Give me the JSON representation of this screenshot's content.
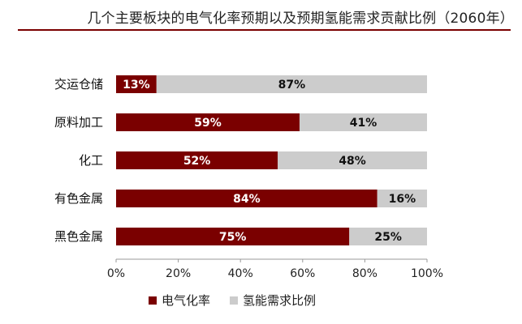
{
  "title": "几个主要板块的电气化率预期以及预期氢能需求贡献比例（2060年）",
  "colors": {
    "series1": "#7a0000",
    "series2": "#cccccc",
    "rule": "#7a0000"
  },
  "chart_data": {
    "type": "bar",
    "orientation": "horizontal",
    "stacked": true,
    "title": "几个主要板块的电气化率预期以及预期氢能需求贡献比例（2060年）",
    "categories": [
      "交运仓储",
      "原料加工",
      "化工",
      "有色金属",
      "黑色金属"
    ],
    "series": [
      {
        "name": "电气化率",
        "values": [
          13,
          59,
          52,
          84,
          75
        ],
        "labels": [
          "13%",
          "59%",
          "52%",
          "84%",
          "75%"
        ]
      },
      {
        "name": "氢能需求比例",
        "values": [
          87,
          41,
          48,
          16,
          25
        ],
        "labels": [
          "87%",
          "41%",
          "48%",
          "16%",
          "25%"
        ]
      }
    ],
    "xlim": [
      0,
      100
    ],
    "xticks": [
      "0%",
      "20%",
      "40%",
      "60%",
      "80%",
      "100%"
    ],
    "grid": false,
    "legend": "bottom-center"
  }
}
